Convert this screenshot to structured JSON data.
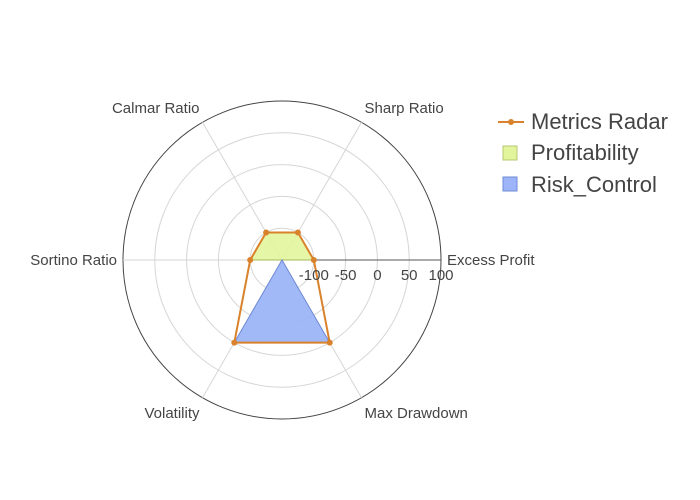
{
  "chart_data": {
    "type": "radar",
    "axes": [
      "Excess Profit",
      "Sharp Ratio",
      "Calmar Ratio",
      "Sortino Ratio",
      "Volatility",
      "Max Drawdown"
    ],
    "radial_range": [
      -150,
      100
    ],
    "radial_ticks": [
      "-100",
      "-50",
      "0",
      "50",
      "100"
    ],
    "radial_tick_values": [
      -100,
      -50,
      0,
      50,
      100
    ],
    "grid": true,
    "legend_position": "top-right",
    "series": [
      {
        "name": "Metrics Radar",
        "kind": "line",
        "color": "#d9822b",
        "values": [
          -100,
          -100,
          -100,
          -100,
          0,
          0
        ]
      },
      {
        "name": "Profitability",
        "kind": "fill",
        "color": "#d8f58a",
        "values": [
          -100,
          -100,
          -100,
          -100
        ]
      },
      {
        "name": "Risk_Control",
        "kind": "fill",
        "color": "#7fa0f5",
        "values": [
          0,
          0
        ]
      }
    ],
    "legend": [
      "Metrics Radar",
      "Profitability",
      "Risk_Control"
    ]
  }
}
